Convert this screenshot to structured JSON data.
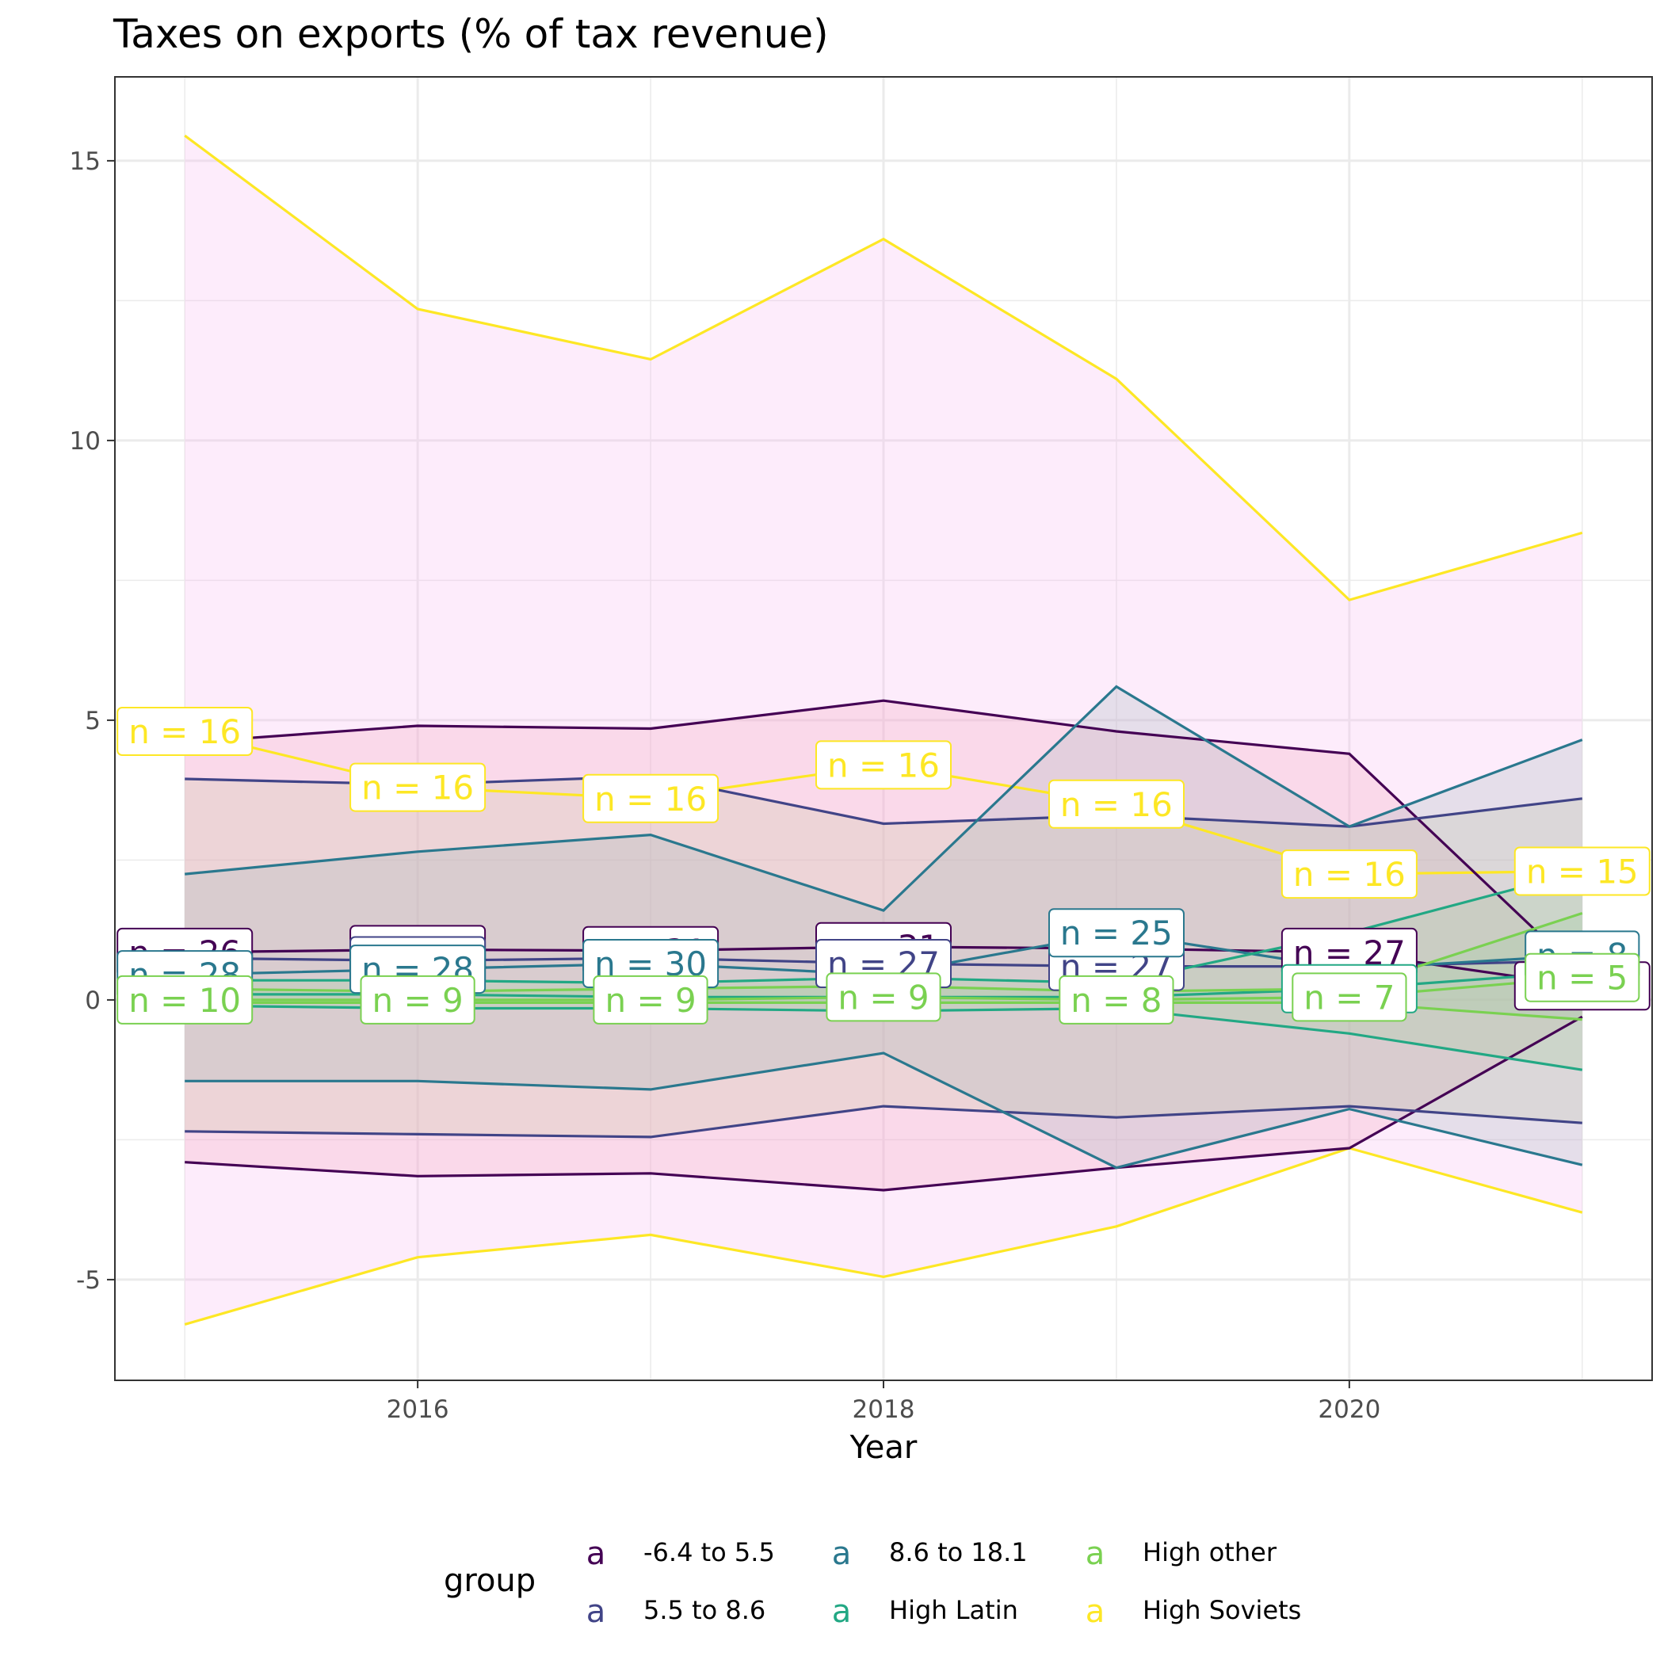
{
  "chart_data": {
    "type": "line",
    "title": "Taxes on exports (% of tax revenue)",
    "xlabel": "Year",
    "ylabel": "",
    "xlim": [
      2014.7,
      2021.3
    ],
    "ylim": [
      -6.8,
      16.5
    ],
    "x_ticks": [
      2016,
      2018,
      2020
    ],
    "y_ticks": [
      -5,
      0,
      5,
      10,
      15
    ],
    "y_tick_labels": [
      "-5",
      "0",
      "5",
      "10",
      "15"
    ],
    "grid": true,
    "legend": {
      "title": "group",
      "position": "bottom",
      "key_glyph": "a",
      "entries": [
        "-6.4 to 5.5",
        "5.5 to 8.6",
        "8.6 to 18.1",
        "High Latin",
        "High other",
        "High Soviets"
      ]
    },
    "x": [
      2015,
      2016,
      2017,
      2018,
      2019,
      2020,
      2021
    ],
    "series": [
      {
        "name": "-6.4 to 5.5",
        "color": "#440154",
        "mean": [
          0.85,
          0.9,
          0.88,
          0.95,
          0.92,
          0.85,
          0.25
        ],
        "upper": [
          4.6,
          4.9,
          4.85,
          5.35,
          4.8,
          4.4,
          0.45
        ],
        "lower": [
          -2.9,
          -3.15,
          -3.1,
          -3.4,
          -3.0,
          -2.65,
          -0.3
        ],
        "n_labels": [
          "n = 26",
          "n = 29",
          "n = 31",
          "n = 31",
          "",
          "n = 27",
          "n = 19"
        ]
      },
      {
        "name": "5.5 to 8.6",
        "color": "#414487",
        "mean": [
          0.75,
          0.7,
          0.75,
          0.65,
          0.6,
          0.6,
          0.7
        ],
        "upper": [
          3.95,
          3.85,
          4.0,
          3.15,
          3.3,
          3.1,
          3.6
        ],
        "lower": [
          -2.35,
          -2.4,
          -2.45,
          -1.9,
          -2.1,
          -1.9,
          -2.2
        ],
        "n_labels": [
          "",
          "n = 30",
          "",
          "n = 27",
          "n = 27",
          "",
          ""
        ]
      },
      {
        "name": "8.6 to 18.1",
        "color": "#2A788E",
        "mean": [
          0.45,
          0.55,
          0.65,
          0.45,
          1.2,
          0.55,
          0.8
        ],
        "upper": [
          2.25,
          2.65,
          2.95,
          1.6,
          5.6,
          3.1,
          4.65
        ],
        "lower": [
          -1.45,
          -1.45,
          -1.6,
          -0.95,
          -3.0,
          -1.95,
          -2.95
        ],
        "n_labels": [
          "n = 28",
          "n = 28",
          "n = 30",
          "",
          "n = 25",
          "",
          "n = 8"
        ]
      },
      {
        "name": "High Latin",
        "color": "#22A884",
        "mean": [
          0.1,
          0.1,
          0.05,
          0.05,
          0.05,
          0.2,
          0.5
        ],
        "upper": [
          0.35,
          0.35,
          0.3,
          0.4,
          0.3,
          1.2,
          2.3
        ],
        "lower": [
          -0.1,
          -0.15,
          -0.15,
          -0.2,
          -0.15,
          -0.6,
          -1.25
        ],
        "n_labels": [
          "",
          "",
          "",
          "",
          "",
          "n = 24",
          ""
        ]
      },
      {
        "name": "High other",
        "color": "#7AD151",
        "mean": [
          0.0,
          0.0,
          0.0,
          0.05,
          0.0,
          0.05,
          0.4
        ],
        "upper": [
          0.2,
          0.15,
          0.2,
          0.25,
          0.15,
          0.2,
          1.55
        ],
        "lower": [
          -0.05,
          -0.05,
          -0.05,
          -0.05,
          -0.05,
          -0.05,
          -0.35
        ],
        "n_labels": [
          "n = 10",
          "n = 9",
          "n = 9",
          "n = 9",
          "n = 8",
          "n = 7",
          "n = 5"
        ]
      },
      {
        "name": "High Soviets",
        "color": "#FDE725",
        "mean": [
          4.8,
          3.8,
          3.6,
          4.2,
          3.5,
          2.25,
          2.3
        ],
        "upper": [
          15.45,
          12.35,
          11.45,
          13.6,
          11.1,
          7.15,
          8.35
        ],
        "lower": [
          -5.8,
          -4.6,
          -4.2,
          -4.95,
          -4.05,
          -2.65,
          -3.8
        ],
        "n_labels": [
          "n = 16",
          "n = 16",
          "n = 16",
          "n = 16",
          "n = 16",
          "n = 16",
          "n = 15"
        ]
      }
    ]
  }
}
